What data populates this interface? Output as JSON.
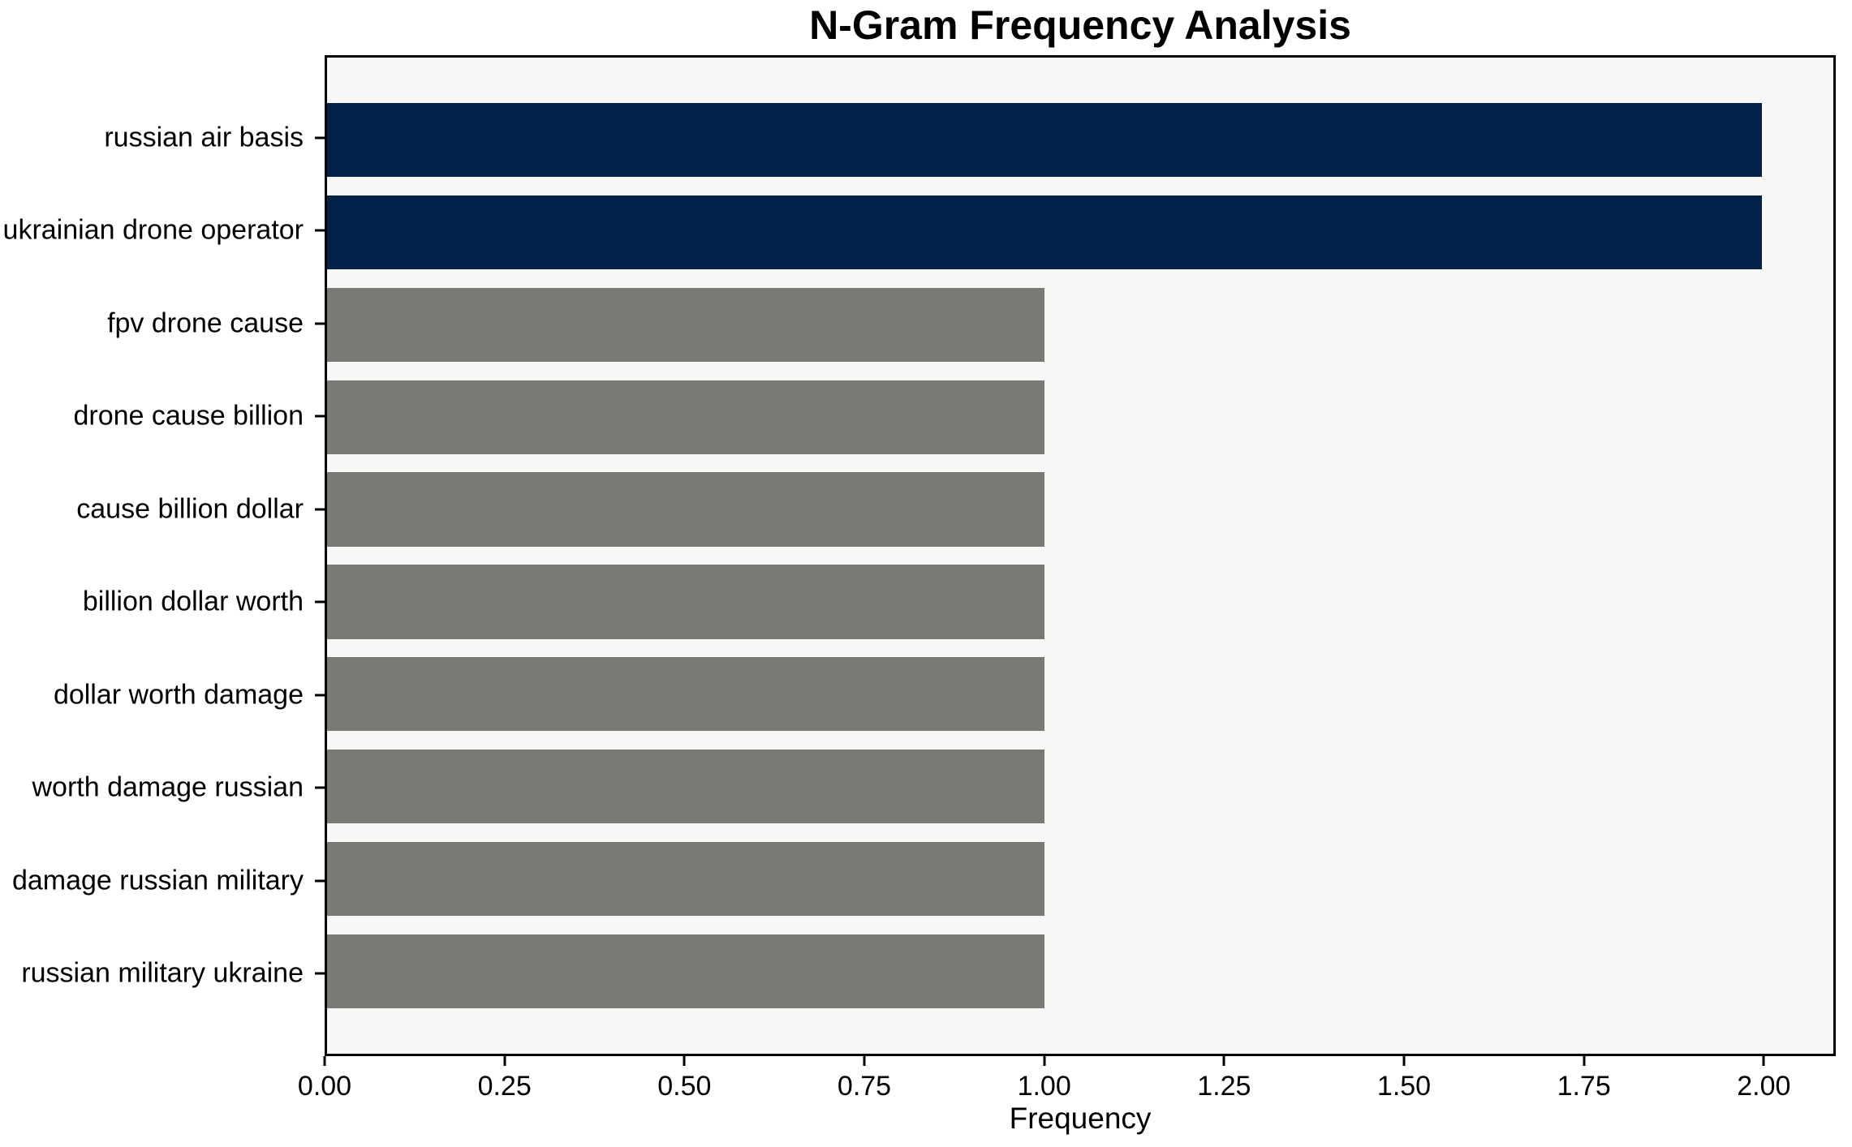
{
  "chart_data": {
    "type": "bar",
    "orientation": "horizontal",
    "title": "N-Gram Frequency Analysis",
    "xlabel": "Frequency",
    "ylabel": "",
    "categories": [
      "russian air basis",
      "ukrainian drone operator",
      "fpv drone cause",
      "drone cause billion",
      "cause billion dollar",
      "billion dollar worth",
      "dollar worth damage",
      "worth damage russian",
      "damage russian military",
      "russian military ukraine"
    ],
    "values": [
      2,
      2,
      1,
      1,
      1,
      1,
      1,
      1,
      1,
      1
    ],
    "bar_colors": [
      "#04234b",
      "#04234b",
      "#7b7975",
      "#7b7975",
      "#7b7975",
      "#7b7975",
      "#7b7975",
      "#7b7975",
      "#7b7975",
      "#7b7975"
    ],
    "xlim": [
      0,
      2.1
    ],
    "xticks": [
      {
        "value": 0.0,
        "label": "0.00"
      },
      {
        "value": 0.25,
        "label": "0.25"
      },
      {
        "value": 0.5,
        "label": "0.50"
      },
      {
        "value": 0.75,
        "label": "0.75"
      },
      {
        "value": 1.0,
        "label": "1.00"
      },
      {
        "value": 1.25,
        "label": "1.25"
      },
      {
        "value": 1.5,
        "label": "1.50"
      },
      {
        "value": 1.75,
        "label": "1.75"
      },
      {
        "value": 2.0,
        "label": "2.00"
      }
    ],
    "grid": false,
    "legend": null,
    "colors": {
      "highlight_bar": "#04234b",
      "default_bar": "#7b7975",
      "plot_background": "#f7f7f6",
      "figure_background": "#ffffff",
      "axis": "#000000",
      "text": "#000000"
    }
  }
}
